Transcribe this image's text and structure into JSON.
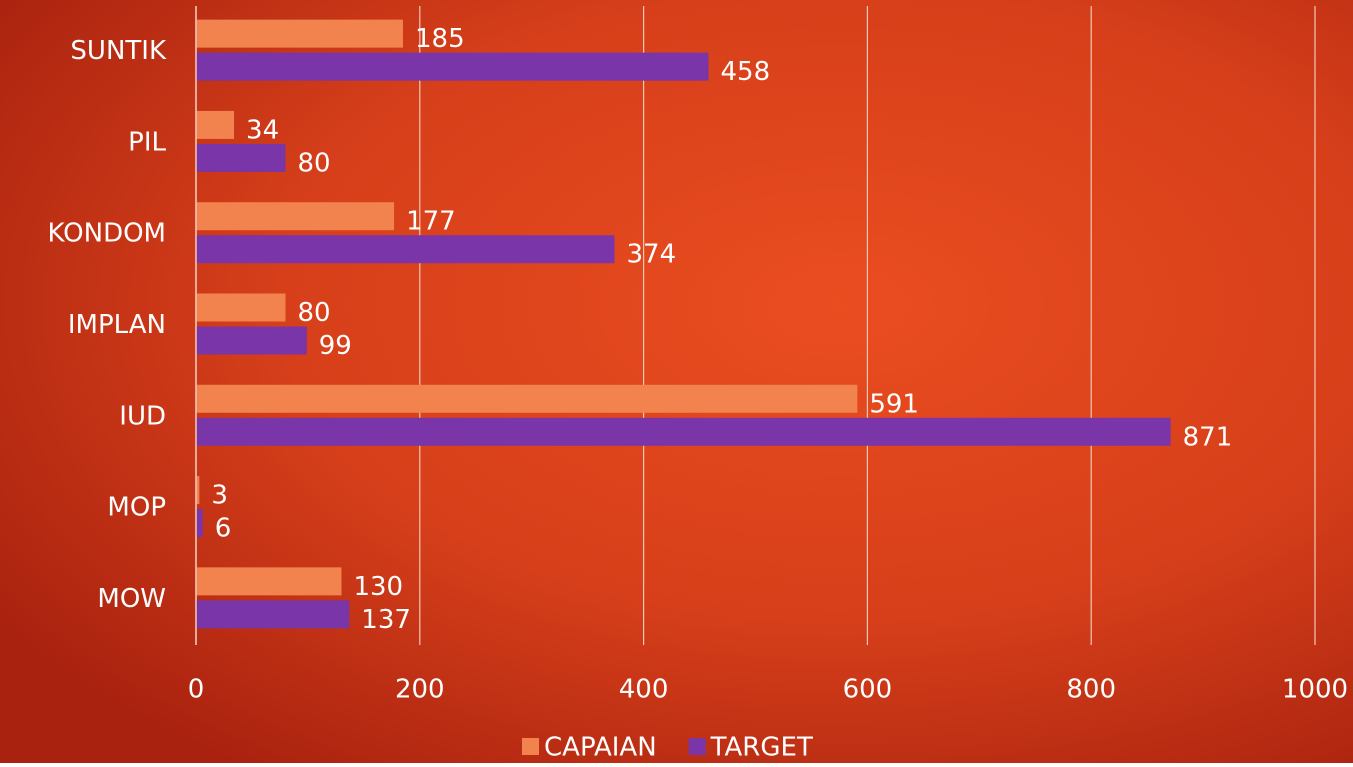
{
  "chart_data": {
    "type": "hbar",
    "categories": [
      "SUNTIK",
      "PIL",
      "KONDOM",
      "IMPLAN",
      "IUD",
      "MOP",
      "MOW"
    ],
    "series": [
      {
        "name": "CAPAIAN",
        "color": "#f2834f",
        "values": [
          185,
          34,
          177,
          80,
          591,
          3,
          130
        ]
      },
      {
        "name": "TARGET",
        "color": "#7a35a8",
        "values": [
          458,
          80,
          374,
          99,
          871,
          6,
          137
        ]
      }
    ],
    "xlim": [
      0,
      1000
    ],
    "xticks": [
      0,
      200,
      400,
      600,
      800,
      1000
    ],
    "grid": true,
    "legend": "bottom"
  }
}
